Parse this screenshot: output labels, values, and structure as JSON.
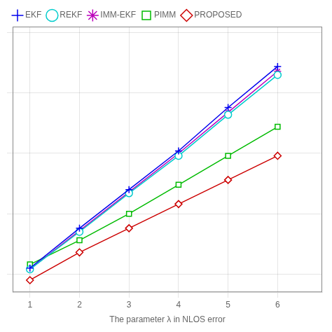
{
  "chart_data": {
    "type": "line",
    "xlabel": "The parameter λ in NLOS error",
    "x": [
      1,
      2,
      3,
      4,
      5,
      6
    ],
    "series": [
      {
        "name": "EKF",
        "color": "#0000EE",
        "marker": "plus",
        "values": [
          0.05,
          0.38,
          0.7,
          1.02,
          1.38,
          1.72
        ]
      },
      {
        "name": "REKF",
        "color": "#00CCCC",
        "marker": "circle",
        "values": [
          0.04,
          0.35,
          0.67,
          0.98,
          1.32,
          1.65
        ]
      },
      {
        "name": "IMM-EKF",
        "color": "#BB00BB",
        "marker": "star",
        "values": [
          0.04,
          0.36,
          0.68,
          1.0,
          1.34,
          1.68
        ]
      },
      {
        "name": "PIMM",
        "color": "#00BB00",
        "marker": "square",
        "values": [
          0.08,
          0.28,
          0.5,
          0.74,
          0.98,
          1.22
        ]
      },
      {
        "name": "PROPOSED",
        "color": "#CC0000",
        "marker": "diamond",
        "values": [
          -0.05,
          0.18,
          0.38,
          0.58,
          0.78,
          0.98
        ]
      }
    ],
    "xlim": [
      0.65,
      6.9
    ],
    "ylim": [
      -0.15,
      2.05
    ],
    "xticks": [
      1,
      2,
      3,
      4,
      5,
      6
    ],
    "yticks": [
      0,
      0.5,
      1,
      1.5,
      2
    ],
    "grid": true,
    "legend": "upper left",
    "tick_labels": "x"
  }
}
